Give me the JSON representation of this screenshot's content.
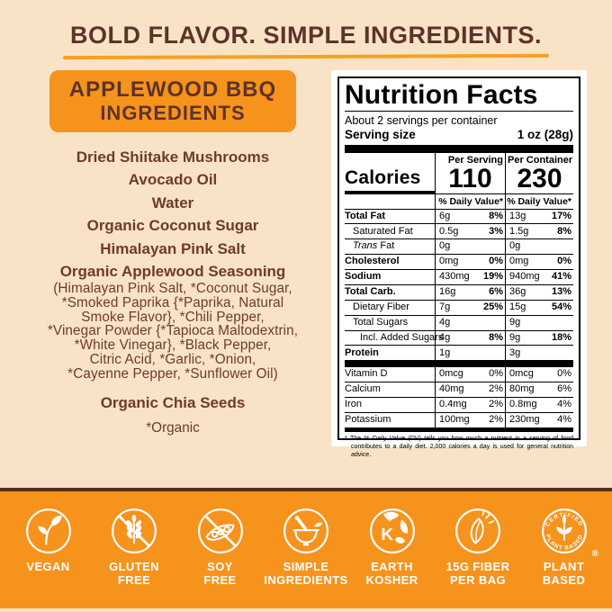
{
  "colors": {
    "cream": "#f9e3c6",
    "orange": "#f6931d",
    "brown_dark": "#5c332a",
    "brown_text": "#6e3b28",
    "band_line": "#54301b",
    "underline_orange": "#f6a11f"
  },
  "header": {
    "title": "BOLD FLAVOR. SIMPLE INGREDIENTS."
  },
  "ingredients_panel": {
    "title_line1": "APPLEWOOD BBQ",
    "title_line2": "INGREDIENTS",
    "items": [
      "Dried Shiitake Mushrooms",
      "Avocado Oil",
      "Water",
      "Organic Coconut Sugar",
      "Himalayan Pink Salt"
    ],
    "seasoning_title": "Organic Applewood Seasoning",
    "seasoning_detail": "(Himalayan Pink Salt, *Coconut Sugar,\n*Smoked Paprika {*Paprika, Natural\nSmoke Flavor}, *Chili Pepper,\n*Vinegar Powder {*Tapioca Maltodextrin,\n*White Vinegar}, *Black Pepper,\nCitric Acid, *Garlic, *Onion,\n*Cayenne Pepper, *Sunflower Oil)",
    "chia": "Organic Chia Seeds",
    "footnote": "*Organic"
  },
  "nutrition": {
    "title": "Nutrition Facts",
    "servings_per_container": "About 2 servings per container",
    "serving_size_label": "Serving size",
    "serving_size_value": "1 oz (28g)",
    "col1_header": "Per Serving",
    "col2_header": "Per Container",
    "calories_label": "Calories",
    "calories_per_serving": "110",
    "calories_per_container": "230",
    "dv_header1": "% Daily Value*",
    "dv_header2": "% Daily Value*",
    "rows": [
      {
        "label": "Total Fat",
        "bold": true,
        "indent": 0,
        "serving": {
          "amount": "6g",
          "dv": "8%"
        },
        "container": {
          "amount": "13g",
          "dv": "17%"
        }
      },
      {
        "label": "Saturated Fat",
        "indent": 1,
        "serving": {
          "amount": "0.5g",
          "dv": "3%"
        },
        "container": {
          "amount": "1.5g",
          "dv": "8%"
        }
      },
      {
        "label_italic": "Trans",
        "label": " Fat",
        "indent": 1,
        "serving": {
          "amount": "0g",
          "dv": ""
        },
        "container": {
          "amount": "0g",
          "dv": ""
        }
      },
      {
        "label": "Cholesterol",
        "bold": true,
        "indent": 0,
        "serving": {
          "amount": "0mg",
          "dv": "0%"
        },
        "container": {
          "amount": "0mg",
          "dv": "0%"
        }
      },
      {
        "label": "Sodium",
        "bold": true,
        "indent": 0,
        "serving": {
          "amount": "430mg",
          "dv": "19%"
        },
        "container": {
          "amount": "940mg",
          "dv": "41%"
        }
      },
      {
        "label": "Total Carb.",
        "bold": true,
        "indent": 0,
        "serving": {
          "amount": "16g",
          "dv": "6%"
        },
        "container": {
          "amount": "36g",
          "dv": "13%"
        }
      },
      {
        "label": "Dietary Fiber",
        "indent": 1,
        "serving": {
          "amount": "7g",
          "dv": "25%"
        },
        "container": {
          "amount": "15g",
          "dv": "54%"
        }
      },
      {
        "label": "Total Sugars",
        "indent": 1,
        "serving": {
          "amount": "4g",
          "dv": ""
        },
        "container": {
          "amount": "9g",
          "dv": ""
        }
      },
      {
        "label": "Incl. Added Sugars",
        "indent": 2,
        "serving": {
          "amount": "4g",
          "dv": "8%"
        },
        "container": {
          "amount": "9g",
          "dv": "18%"
        }
      },
      {
        "label": "Protein",
        "bold": true,
        "indent": 0,
        "serving": {
          "amount": "1g",
          "dv": ""
        },
        "container": {
          "amount": "3g",
          "dv": ""
        }
      }
    ],
    "vitamins": [
      {
        "label": "Vitamin D",
        "serving": {
          "amount": "0mcg",
          "dv": "0%"
        },
        "container": {
          "amount": "0mcg",
          "dv": "0%"
        }
      },
      {
        "label": "Calcium",
        "serving": {
          "amount": "40mg",
          "dv": "2%"
        },
        "container": {
          "amount": "80mg",
          "dv": "6%"
        }
      },
      {
        "label": "Iron",
        "serving": {
          "amount": "0.4mg",
          "dv": "2%"
        },
        "container": {
          "amount": "0.8mg",
          "dv": "4%"
        }
      },
      {
        "label": "Potassium",
        "serving": {
          "amount": "100mg",
          "dv": "2%"
        },
        "container": {
          "amount": "230mg",
          "dv": "4%"
        }
      }
    ],
    "footnote": "* The % Daily Value (DV) tells you how much a nutrient in a serving of food contributes to a daily diet. 2,000 calories a day is used for general nutrition advice."
  },
  "badges": [
    {
      "line1": "VEGAN",
      "line2": ""
    },
    {
      "line1": "GLUTEN",
      "line2": "FREE"
    },
    {
      "line1": "SOY",
      "line2": "FREE"
    },
    {
      "line1": "SIMPLE",
      "line2": "INGREDIENTS"
    },
    {
      "line1": "EARTH",
      "line2": "KOSHER",
      "letter": "K"
    },
    {
      "line1": "15G FIBER",
      "line2": "PER BAG"
    },
    {
      "line1": "PLANT",
      "line2": "BASED"
    }
  ],
  "plant_badge": {
    "top": "CERTIFIED",
    "bottom": "PLANT BASED",
    "reg": "®"
  }
}
